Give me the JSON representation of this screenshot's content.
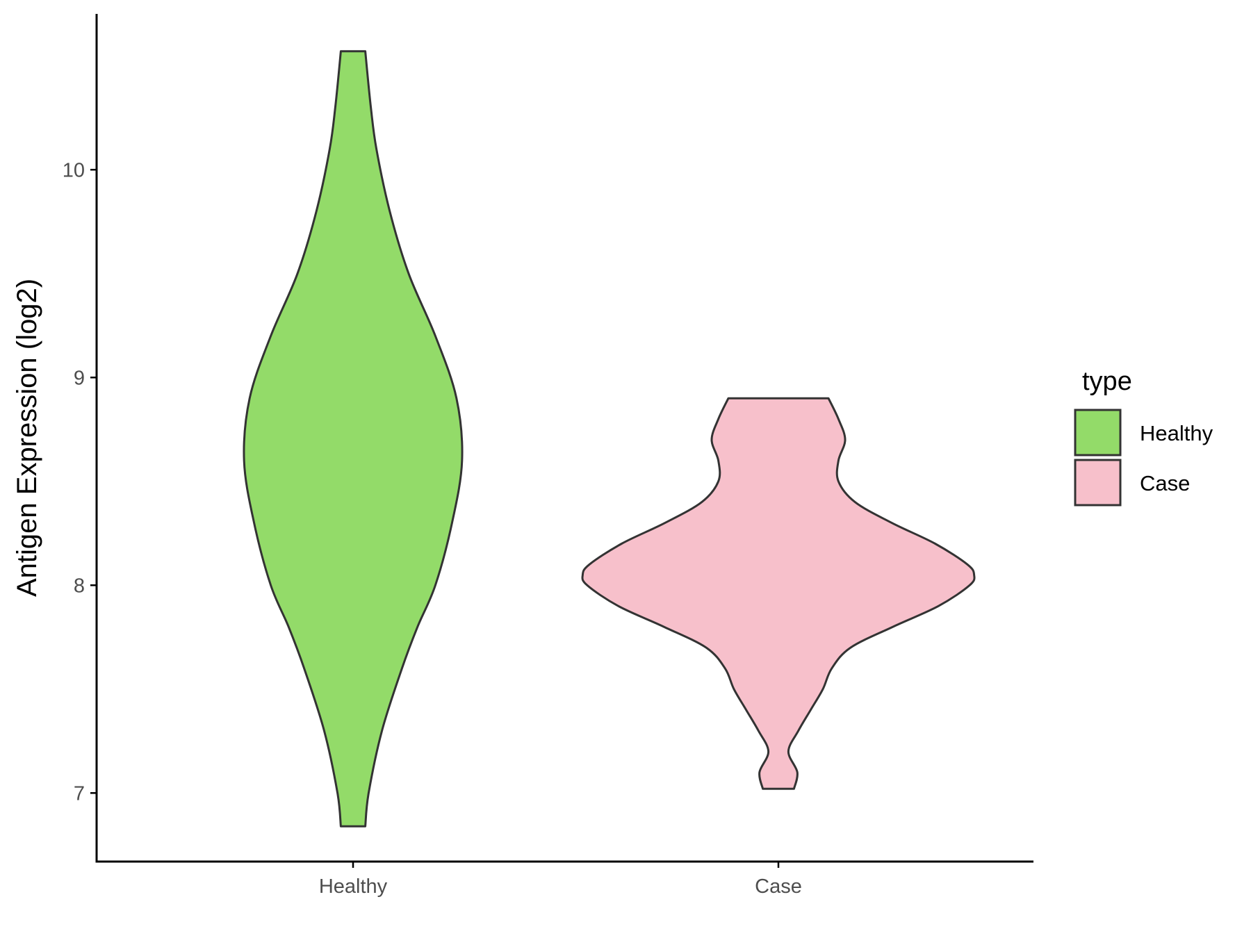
{
  "chart_data": {
    "type": "violin",
    "title": "",
    "xlabel": "",
    "ylabel": "Antigen Expression (log2)",
    "ylim": [
      6.67,
      10.75
    ],
    "yticks": [
      7,
      8,
      9,
      10
    ],
    "ytick_labels": [
      "7",
      "8",
      "9",
      "10"
    ],
    "categories": [
      "Healthy",
      "Case"
    ],
    "grid": false,
    "legend": {
      "title": "type",
      "position": "right",
      "entries": [
        "Healthy",
        "Case"
      ]
    },
    "series": [
      {
        "name": "Healthy",
        "color": "#93DB69",
        "min": 6.84,
        "max": 10.57,
        "density_profile": [
          [
            6.84,
            0.11
          ],
          [
            7.0,
            0.14
          ],
          [
            7.3,
            0.26
          ],
          [
            7.6,
            0.44
          ],
          [
            7.8,
            0.58
          ],
          [
            8.0,
            0.74
          ],
          [
            8.3,
            0.89
          ],
          [
            8.6,
            0.98
          ],
          [
            8.9,
            0.93
          ],
          [
            9.2,
            0.74
          ],
          [
            9.5,
            0.5
          ],
          [
            9.8,
            0.33
          ],
          [
            10.1,
            0.21
          ],
          [
            10.3,
            0.16
          ],
          [
            10.57,
            0.11
          ]
        ]
      },
      {
        "name": "Case",
        "color": "#F7C0CB",
        "min": 7.02,
        "max": 8.9,
        "density_profile": [
          [
            7.02,
            0.14
          ],
          [
            7.1,
            0.17
          ],
          [
            7.2,
            0.09
          ],
          [
            7.3,
            0.18
          ],
          [
            7.4,
            0.29
          ],
          [
            7.5,
            0.4
          ],
          [
            7.6,
            0.48
          ],
          [
            7.7,
            0.65
          ],
          [
            7.8,
            1.03
          ],
          [
            7.9,
            1.44
          ],
          [
            8.0,
            1.72
          ],
          [
            8.05,
            1.76
          ],
          [
            8.1,
            1.7
          ],
          [
            8.2,
            1.41
          ],
          [
            8.3,
            1.02
          ],
          [
            8.4,
            0.69
          ],
          [
            8.5,
            0.54
          ],
          [
            8.6,
            0.54
          ],
          [
            8.7,
            0.6
          ],
          [
            8.8,
            0.54
          ],
          [
            8.9,
            0.45
          ]
        ]
      }
    ]
  },
  "colors": {
    "outline": "#333333",
    "axis": "#000000",
    "tick_text": "#4d4d4d"
  }
}
